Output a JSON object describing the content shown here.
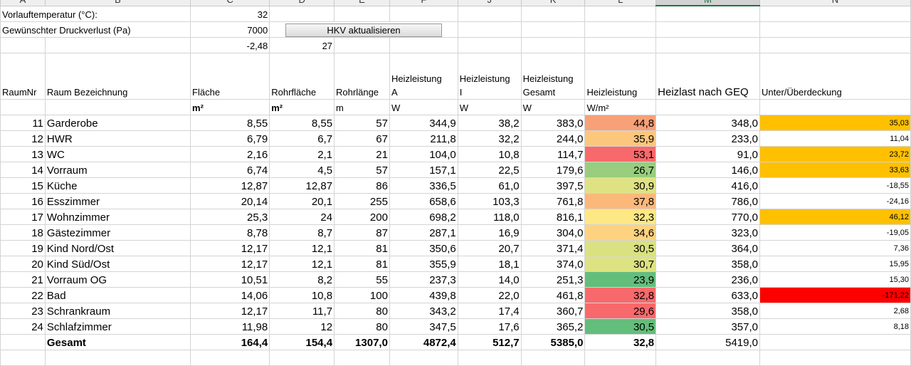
{
  "columns": [
    "A",
    "B",
    "C",
    "D",
    "E",
    "F",
    "J",
    "K",
    "L",
    "M",
    "N"
  ],
  "info": {
    "temp_label": "Vorlauftemperatur (°C):",
    "temp_value": "32",
    "druck_label": "Gewünschter Druckverlust (Pa)",
    "druck_value": "7000",
    "button_label": "HKV aktualisieren",
    "c3": "-2,48",
    "d3": "27"
  },
  "headers": {
    "raumnr": "RaumNr",
    "bez": "Raum Bezeichnung",
    "flaeche": "Fläche",
    "rohrflaeche": "Rohrfläche",
    "rohrlaenge": "Rohrlänge",
    "hl_a_1": "Heizleistung",
    "hl_a_2": "A",
    "hl_i_1": "Heizleistung",
    "hl_i_2": "I",
    "hl_g_1": "Heizleistung",
    "hl_g_2": "Gesamt",
    "hl": "Heizleistung",
    "geq": "Heizlast nach GEQ",
    "deckung": "Unter/Überdeckung"
  },
  "units": {
    "flaeche": "m²",
    "rohrflaeche": "m²",
    "rohrlaenge": "m",
    "hl_a": "W",
    "hl_i": "W",
    "hl_g": "W",
    "hl": "W/m²"
  },
  "rows": [
    {
      "nr": "11",
      "name": "Garderobe",
      "flaeche": "8,55",
      "rohrfl": "8,55",
      "rohrl": "57",
      "a": "344,9",
      "i": "38,2",
      "g": "383,0",
      "hl": "44,8",
      "geq": "348,0",
      "diff": "35,03",
      "hl_color": "#f8a077",
      "diff_color": "#ffc000"
    },
    {
      "nr": "12",
      "name": "HWR",
      "flaeche": "6,79",
      "rohrfl": "6,7",
      "rohrl": "67",
      "a": "211,8",
      "i": "32,2",
      "g": "244,0",
      "hl": "35,9",
      "geq": "233,0",
      "diff": "11,04",
      "hl_color": "#fcc77d",
      "diff_color": ""
    },
    {
      "nr": "13",
      "name": "WC",
      "flaeche": "2,16",
      "rohrfl": "2,1",
      "rohrl": "21",
      "a": "104,0",
      "i": "10,8",
      "g": "114,7",
      "hl": "53,1",
      "geq": "91,0",
      "diff": "23,72",
      "hl_color": "#f8696b",
      "diff_color": "#ffc000"
    },
    {
      "nr": "14",
      "name": "Vorraum",
      "flaeche": "6,74",
      "rohrfl": "4,5",
      "rohrl": "57",
      "a": "157,1",
      "i": "22,5",
      "g": "179,6",
      "hl": "26,7",
      "geq": "146,0",
      "diff": "33,63",
      "hl_color": "#98cd7e",
      "diff_color": "#ffc000"
    },
    {
      "nr": "15",
      "name": "Küche",
      "flaeche": "12,87",
      "rohrfl": "12,87",
      "rohrl": "86",
      "a": "336,5",
      "i": "61,0",
      "g": "397,5",
      "hl": "30,9",
      "geq": "416,0",
      "diff": "-18,55",
      "hl_color": "#dfe283",
      "diff_color": ""
    },
    {
      "nr": "16",
      "name": "Esszimmer",
      "flaeche": "20,14",
      "rohrfl": "20,1",
      "rohrl": "255",
      "a": "658,6",
      "i": "103,3",
      "g": "761,8",
      "hl": "37,8",
      "geq": "786,0",
      "diff": "-24,16",
      "hl_color": "#fcb87a",
      "diff_color": ""
    },
    {
      "nr": "17",
      "name": "Wohnzimmer",
      "flaeche": "25,3",
      "rohrfl": "24",
      "rohrl": "200",
      "a": "698,2",
      "i": "118,0",
      "g": "816,1",
      "hl": "32,3",
      "geq": "770,0",
      "diff": "46,12",
      "hl_color": "#fee884",
      "diff_color": "#ffc000"
    },
    {
      "nr": "18",
      "name": "Gästezimmer",
      "flaeche": "8,78",
      "rohrfl": "8,7",
      "rohrl": "87",
      "a": "287,1",
      "i": "16,9",
      "g": "304,0",
      "hl": "34,6",
      "geq": "323,0",
      "diff": "-19,05",
      "hl_color": "#fed280",
      "diff_color": ""
    },
    {
      "nr": "19",
      "name": "Kind Nord/Ost",
      "flaeche": "12,17",
      "rohrfl": "12,1",
      "rohrl": "81",
      "a": "350,6",
      "i": "20,7",
      "g": "371,4",
      "hl": "30,5",
      "geq": "364,0",
      "diff": "7,36",
      "hl_color": "#d9e182",
      "diff_color": ""
    },
    {
      "nr": "20",
      "name": "Kind Süd/Ost",
      "flaeche": "12,17",
      "rohrfl": "12,1",
      "rohrl": "81",
      "a": "355,9",
      "i": "18,1",
      "g": "374,0",
      "hl": "30,7",
      "geq": "358,0",
      "diff": "15,95",
      "hl_color": "#dde283",
      "diff_color": ""
    },
    {
      "nr": "21",
      "name": "Vorraum OG",
      "flaeche": "10,51",
      "rohrfl": "8,2",
      "rohrl": "55",
      "a": "237,3",
      "i": "14,0",
      "g": "251,3",
      "hl": "23,9",
      "geq": "236,0",
      "diff": "15,30",
      "hl_color": "#63be7b",
      "diff_color": ""
    },
    {
      "nr": "22",
      "name": "Bad",
      "flaeche": "14,06",
      "rohrfl": "10,8",
      "rohrl": "100",
      "a": "439,8",
      "i": "22,0",
      "g": "461,8",
      "hl": "32,8",
      "geq": "633,0",
      "diff": "-171,22",
      "hl_color": "#f8696b",
      "diff_color": "#ff0000"
    },
    {
      "nr": "23",
      "name": "Schrankraum",
      "flaeche": "12,17",
      "rohrfl": "11,7",
      "rohrl": "80",
      "a": "343,2",
      "i": "17,4",
      "g": "360,7",
      "hl": "29,6",
      "geq": "358,0",
      "diff": "2,68",
      "hl_color": "#f8696b",
      "diff_color": ""
    },
    {
      "nr": "24",
      "name": "Schlafzimmer",
      "flaeche": "11,98",
      "rohrfl": "12",
      "rohrl": "80",
      "a": "347,5",
      "i": "17,6",
      "g": "365,2",
      "hl": "30,5",
      "geq": "357,0",
      "diff": "8,18",
      "hl_color": "#63be7b",
      "diff_color": ""
    }
  ],
  "total": {
    "label": "Gesamt",
    "flaeche": "164,4",
    "rohrfl": "154,4",
    "rohrl": "1307,0",
    "a": "4872,4",
    "i": "512,7",
    "g": "5385,0",
    "hl": "32,8",
    "geq": "5419,0"
  }
}
